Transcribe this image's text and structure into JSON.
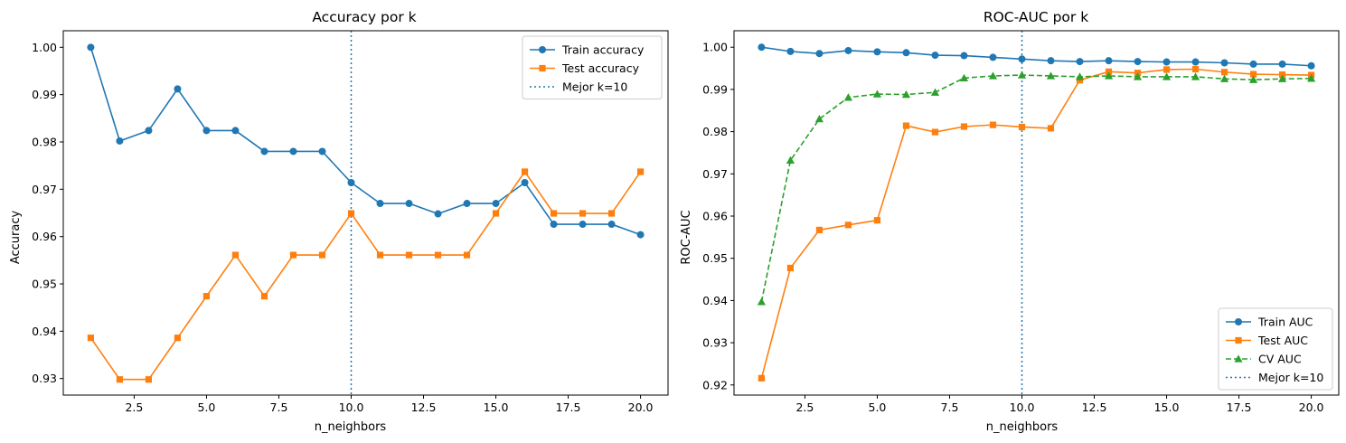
{
  "chart_data": [
    {
      "type": "line",
      "title": "Accuracy por k",
      "xlabel": "n_neighbors",
      "ylabel": "Accuracy",
      "xlim": [
        0.05,
        20.95
      ],
      "ylim": [
        0.9265,
        1.0035
      ],
      "xticks": [
        2.5,
        5.0,
        7.5,
        10.0,
        12.5,
        15.0,
        17.5,
        20.0
      ],
      "xtick_labels": [
        "2.5",
        "5.0",
        "7.5",
        "10.0",
        "12.5",
        "15.0",
        "17.5",
        "20.0"
      ],
      "yticks": [
        0.93,
        0.94,
        0.95,
        0.96,
        0.97,
        0.98,
        0.99,
        1.0
      ],
      "ytick_labels": [
        "0.93",
        "0.94",
        "0.95",
        "0.96",
        "0.97",
        "0.98",
        "0.99",
        "1.00"
      ],
      "grid": false,
      "legend_position": "top-right",
      "x": [
        1,
        2,
        3,
        4,
        5,
        6,
        7,
        8,
        9,
        10,
        11,
        12,
        13,
        14,
        15,
        16,
        17,
        18,
        19,
        20
      ],
      "series": [
        {
          "name": "Train accuracy",
          "color": "#1f77b4",
          "marker": "circle",
          "linestyle": "solid",
          "values": [
            1.0,
            0.9802,
            0.9824,
            0.9912,
            0.9824,
            0.9824,
            0.978,
            0.978,
            0.978,
            0.9714,
            0.967,
            0.967,
            0.9648,
            0.967,
            0.967,
            0.9714,
            0.9626,
            0.9626,
            0.9626,
            0.9604
          ]
        },
        {
          "name": "Test accuracy",
          "color": "#ff7f0e",
          "marker": "square",
          "linestyle": "solid",
          "values": [
            0.9386,
            0.9298,
            0.9298,
            0.9386,
            0.9474,
            0.9561,
            0.9474,
            0.9561,
            0.9561,
            0.9649,
            0.9561,
            0.9561,
            0.9561,
            0.9561,
            0.9649,
            0.9737,
            0.9649,
            0.9649,
            0.9649,
            0.9737
          ]
        }
      ],
      "vline": {
        "name": "Mejor k=10",
        "x": 10,
        "color": "#1f77b4",
        "linestyle": "dotted"
      }
    },
    {
      "type": "line",
      "title": "ROC-AUC por k",
      "xlabel": "n_neighbors",
      "ylabel": "ROC-AUC",
      "xlim": [
        0.05,
        20.95
      ],
      "ylim": [
        0.9176,
        1.0039
      ],
      "xticks": [
        2.5,
        5.0,
        7.5,
        10.0,
        12.5,
        15.0,
        17.5,
        20.0
      ],
      "xtick_labels": [
        "2.5",
        "5.0",
        "7.5",
        "10.0",
        "12.5",
        "15.0",
        "17.5",
        "20.0"
      ],
      "yticks": [
        0.92,
        0.93,
        0.94,
        0.95,
        0.96,
        0.97,
        0.98,
        0.99,
        1.0
      ],
      "ytick_labels": [
        "0.92",
        "0.93",
        "0.94",
        "0.95",
        "0.96",
        "0.97",
        "0.98",
        "0.99",
        "1.00"
      ],
      "grid": false,
      "legend_position": "bottom-right",
      "x": [
        1,
        2,
        3,
        4,
        5,
        6,
        7,
        8,
        9,
        10,
        11,
        12,
        13,
        14,
        15,
        16,
        17,
        18,
        19,
        20
      ],
      "series": [
        {
          "name": "Train AUC",
          "color": "#1f77b4",
          "marker": "circle",
          "linestyle": "solid",
          "values": [
            1.0,
            0.999,
            0.9985,
            0.9992,
            0.9989,
            0.9987,
            0.9981,
            0.998,
            0.9976,
            0.9972,
            0.9968,
            0.9966,
            0.9968,
            0.9966,
            0.9965,
            0.9965,
            0.9963,
            0.996,
            0.996,
            0.9956
          ]
        },
        {
          "name": "Test AUC",
          "color": "#ff7f0e",
          "marker": "square",
          "linestyle": "solid",
          "values": [
            0.9216,
            0.9477,
            0.9567,
            0.9579,
            0.959,
            0.9814,
            0.9799,
            0.9812,
            0.9816,
            0.9811,
            0.9808,
            0.9922,
            0.9942,
            0.9939,
            0.9947,
            0.9948,
            0.9941,
            0.9936,
            0.9935,
            0.9934
          ]
        },
        {
          "name": "CV AUC",
          "color": "#2ca02c",
          "marker": "triangle",
          "linestyle": "dashed",
          "values": [
            0.9397,
            0.9732,
            0.983,
            0.9881,
            0.9889,
            0.9888,
            0.9893,
            0.9927,
            0.9932,
            0.9934,
            0.9932,
            0.993,
            0.9932,
            0.993,
            0.993,
            0.993,
            0.9925,
            0.9923,
            0.9925,
            0.9926
          ]
        }
      ],
      "vline": {
        "name": "Mejor k=10",
        "x": 10,
        "color": "#1f77b4",
        "linestyle": "dotted"
      }
    }
  ]
}
